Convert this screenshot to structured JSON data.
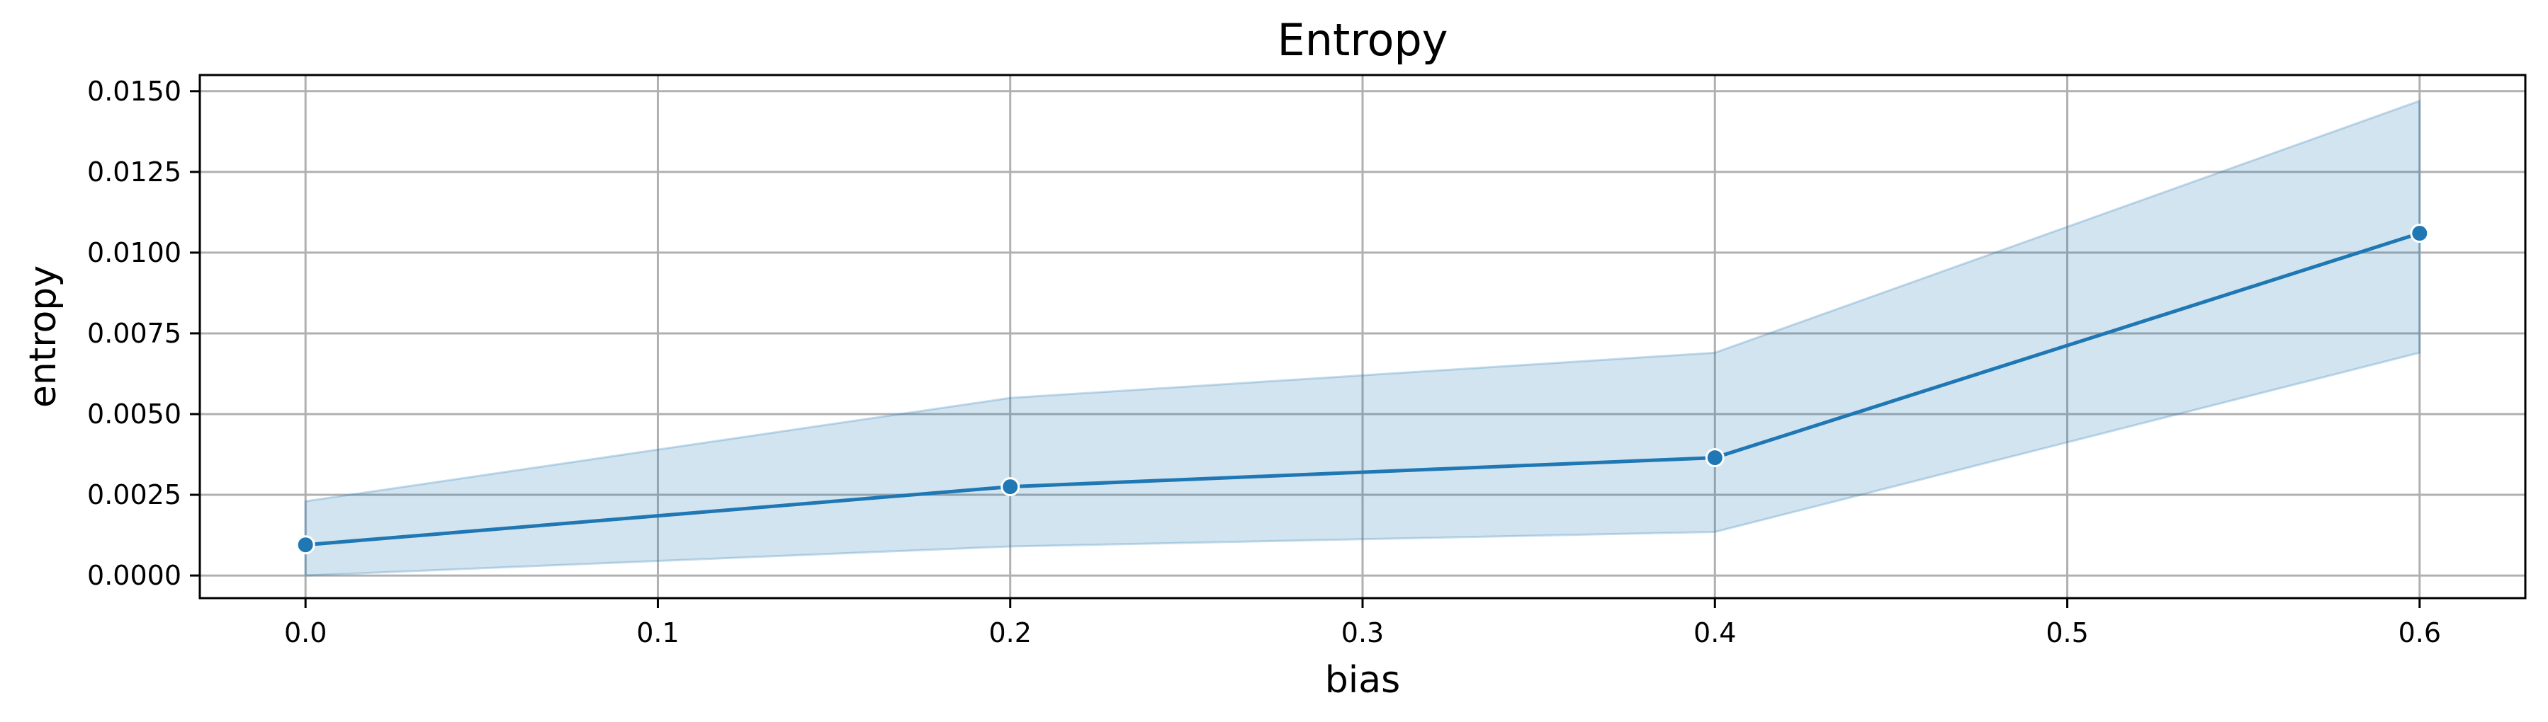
{
  "chart_data": {
    "type": "line",
    "title": "Entropy",
    "xlabel": "bias",
    "ylabel": "entropy",
    "xlim": [
      -0.03,
      0.63
    ],
    "ylim": [
      -0.0007,
      0.0155
    ],
    "xticks": [
      0.0,
      0.1,
      0.2,
      0.3,
      0.4,
      0.5,
      0.6
    ],
    "xtick_labels": [
      "0.0",
      "0.1",
      "0.2",
      "0.3",
      "0.4",
      "0.5",
      "0.6"
    ],
    "yticks": [
      0.0,
      0.0025,
      0.005,
      0.0075,
      0.01,
      0.0125,
      0.015
    ],
    "ytick_labels": [
      "0.0000",
      "0.0025",
      "0.0050",
      "0.0075",
      "0.0100",
      "0.0125",
      "0.0150"
    ],
    "grid": true,
    "series": [
      {
        "x": [
          0.0,
          0.2,
          0.4,
          0.6
        ],
        "y": [
          0.00095,
          0.00275,
          0.00365,
          0.0106
        ],
        "ci_lower": [
          0.0,
          0.0009,
          0.00135,
          0.0069
        ],
        "ci_upper": [
          0.0023,
          0.0055,
          0.0069,
          0.0147
        ],
        "color": "#1f77b4",
        "band_color": "#1f77b4"
      }
    ]
  }
}
